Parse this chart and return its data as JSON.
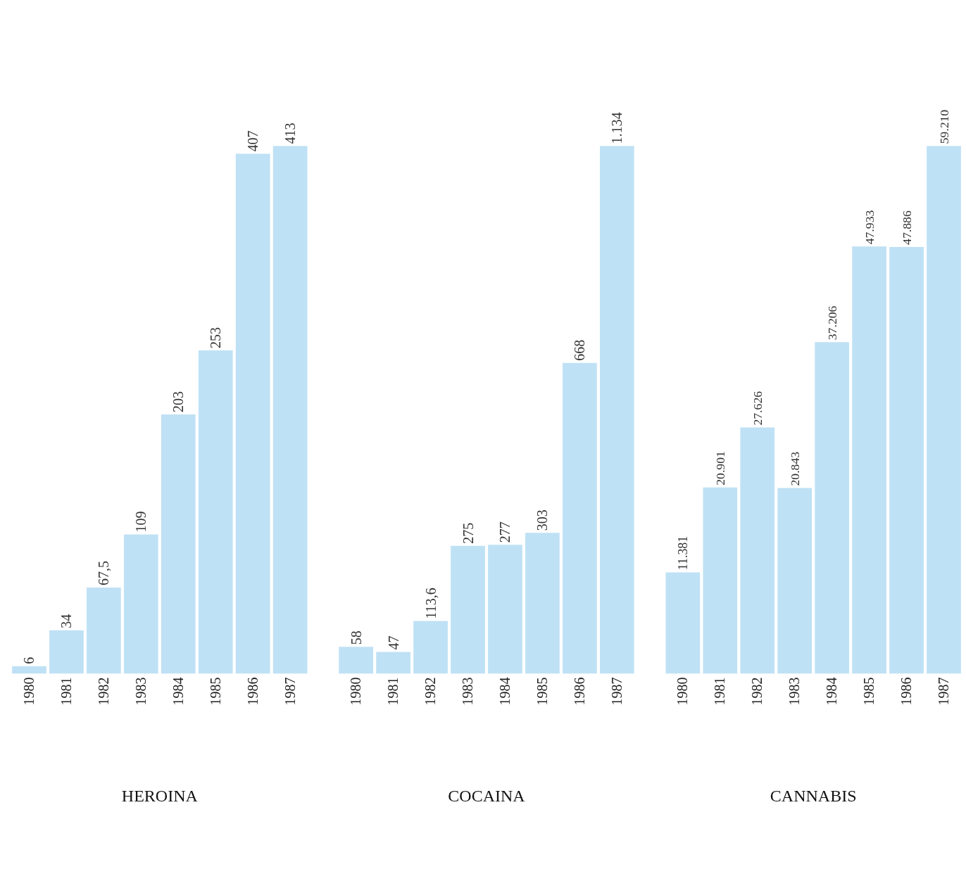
{
  "chart_data": [
    {
      "type": "bar",
      "xlabel": "HEROINA",
      "categories": [
        "1980",
        "1981",
        "1982",
        "1983",
        "1984",
        "1985",
        "1986",
        "1987"
      ],
      "values": [
        6,
        34,
        67.5,
        109,
        203,
        253,
        407,
        413
      ],
      "value_labels": [
        "6",
        "34",
        "67,5",
        "109",
        "203",
        "253",
        "407",
        "413"
      ],
      "color": "#bfe1f5",
      "tick_labels": "x"
    },
    {
      "type": "bar",
      "xlabel": "COCAINA",
      "categories": [
        "1980",
        "1981",
        "1982",
        "1983",
        "1984",
        "1985",
        "1986",
        "1987"
      ],
      "values": [
        58,
        47,
        113.6,
        275,
        277,
        303,
        668,
        1134
      ],
      "value_labels": [
        "58",
        "47",
        "113,6",
        "275",
        "277",
        "303",
        "668",
        "1.134"
      ],
      "color": "#bfe1f5",
      "tick_labels": "x"
    },
    {
      "type": "bar",
      "xlabel": "CANNABIS",
      "categories": [
        "1980",
        "1981",
        "1982",
        "1983",
        "1984",
        "1985",
        "1986",
        "1987"
      ],
      "values": [
        11381,
        20901,
        27626,
        20843,
        37206,
        47933,
        47886,
        59210
      ],
      "value_labels": [
        "11.381",
        "20.901",
        "27.626",
        "20.843",
        "37.206",
        "47.933",
        "47.886",
        "59.210"
      ],
      "color": "#bfe1f5",
      "tick_labels": "x"
    }
  ]
}
